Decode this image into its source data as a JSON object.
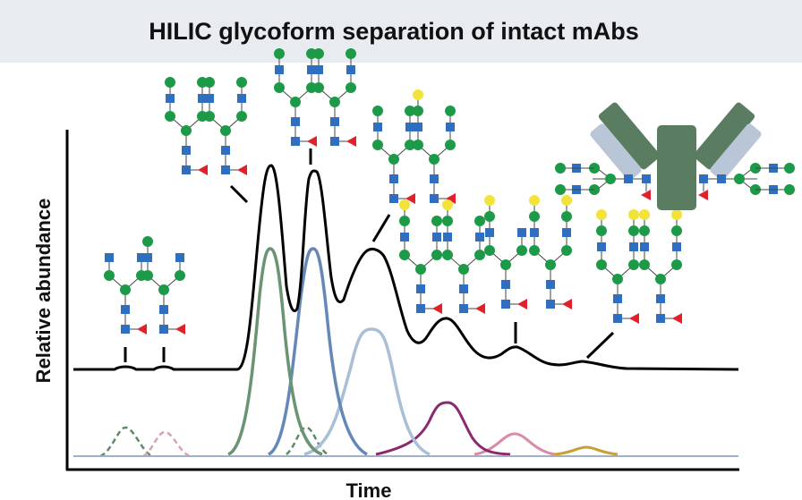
{
  "header": {
    "title": "HILIC glycoform separation of intact mAbs"
  },
  "axes": {
    "x_label": "Time",
    "y_label": "Relative abundance"
  }
}
